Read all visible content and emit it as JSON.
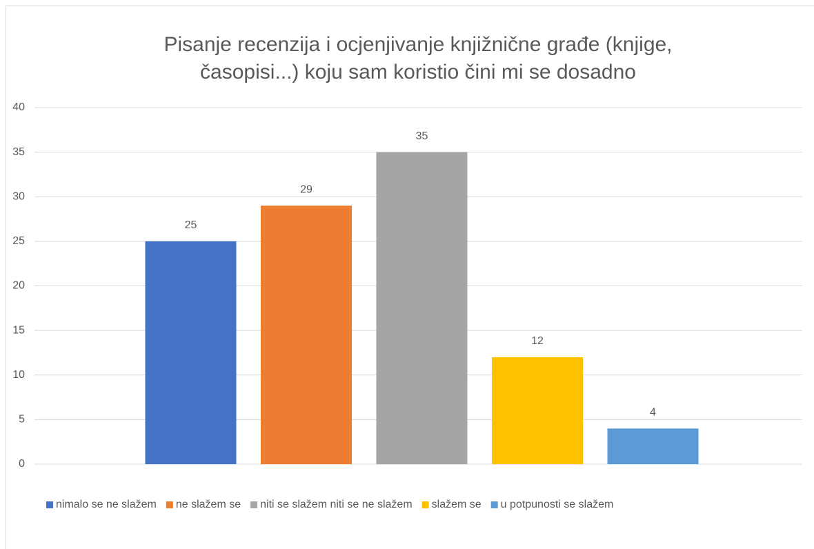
{
  "chart_data": {
    "type": "bar",
    "title": [
      "Pisanje recenzija i ocjenjivanje knjižnične građe (knjige,",
      "časopisi...) koju sam koristio čini mi se dosadno"
    ],
    "categories": [
      null
    ],
    "series": [
      {
        "name": "nimalo se ne slažem",
        "color": "#4472c4",
        "values": [
          25
        ]
      },
      {
        "name": "ne slažem se",
        "color": "#ed7d31",
        "values": [
          29
        ]
      },
      {
        "name": "niti se slažem niti se ne slažem",
        "color": "#a5a5a5",
        "values": [
          35
        ]
      },
      {
        "name": "slažem se",
        "color": "#ffc000",
        "values": [
          12
        ]
      },
      {
        "name": "u potpunosti se slažem",
        "color": "#5b9bd5",
        "values": [
          4
        ]
      }
    ],
    "ylim": [
      0,
      40
    ],
    "yticks": [
      0,
      5,
      10,
      15,
      20,
      25,
      30,
      35,
      40
    ],
    "grid": true,
    "legend": "bottom"
  }
}
